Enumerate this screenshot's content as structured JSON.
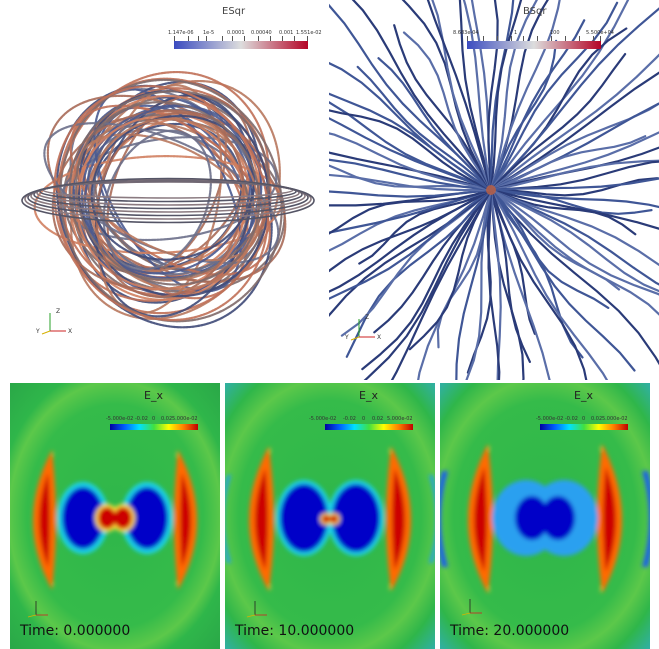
{
  "panels": {
    "esqr": {
      "title": "ESqr",
      "colorbar_labels": [
        "1.147e-06",
        "1e-5",
        "0.0001",
        "0.00040",
        "0.001",
        "1.551e-02"
      ],
      "axes": {
        "z": "Z",
        "y": "Y",
        "x": "X"
      }
    },
    "bsqr": {
      "title": "BSqr",
      "colorbar_labels": [
        "8.683e-04",
        "1",
        "100",
        "5.500e+04"
      ],
      "axes": {
        "z": "Z",
        "y": "Y",
        "x": "X"
      }
    },
    "ex_t0": {
      "title": "E_x",
      "colorbar_labels": [
        "-5.000e-02",
        "-0.02",
        "0",
        "0.02",
        "5.000e-02"
      ],
      "time": "Time: 0.000000"
    },
    "ex_t10": {
      "title": "E_x",
      "colorbar_labels": [
        "-5.000e-02",
        "-0.02",
        "0",
        "0.02",
        "5.000e-02"
      ],
      "time": "Time: 10.000000"
    },
    "ex_t20": {
      "title": "E_x",
      "colorbar_labels": [
        "-5.000e-02",
        "-0.02",
        "0",
        "0.02",
        "5.000e-02"
      ],
      "time": "Time: 20.000000"
    }
  },
  "colors": {
    "coolwarm_low": "#3b4cc0",
    "coolwarm_mid": "#dddddd",
    "coolwarm_high": "#b40426",
    "jet_blue": "#0000c8",
    "jet_red": "#cc0000",
    "jet_green": "#2fb64a"
  }
}
